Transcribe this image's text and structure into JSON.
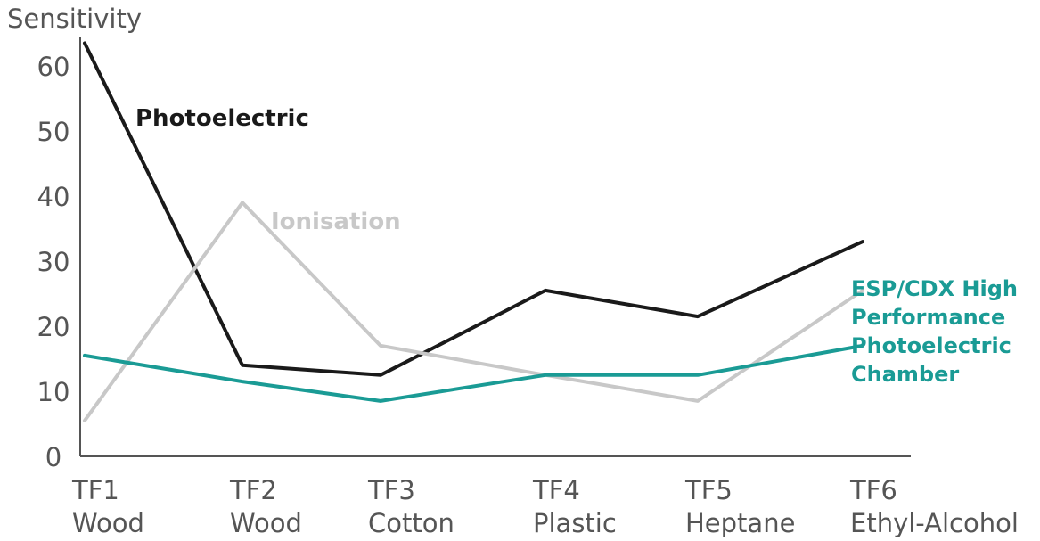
{
  "chart_data": {
    "type": "line",
    "title": "",
    "xlabel": "",
    "ylabel": "Sensitivity",
    "ylim": [
      0,
      63
    ],
    "yticks": [
      "0",
      "10",
      "20",
      "30",
      "40",
      "50",
      "60"
    ],
    "categories": [
      {
        "line1": "TF1",
        "line2": "Wood"
      },
      {
        "line1": "TF2",
        "line2": "Wood"
      },
      {
        "line1": "TF3",
        "line2": "Cotton"
      },
      {
        "line1": "TF4",
        "line2": "Plastic"
      },
      {
        "line1": "TF5",
        "line2": "Heptane"
      },
      {
        "line1": "TF6",
        "line2": "Ethyl-Alcohol"
      }
    ],
    "series": [
      {
        "name": "Photoelectric",
        "values": [
          63.5,
          14,
          12.5,
          25.5,
          21.5,
          33
        ],
        "color": "#1a1a1a"
      },
      {
        "name": "Ionisation",
        "values": [
          5.5,
          39,
          17,
          12.5,
          8.5,
          25.5
        ],
        "color": "#c8c8c8"
      },
      {
        "name": "ESP/CDX High Performance Photoelectric Chamber",
        "values": [
          15.5,
          11.5,
          8.5,
          12.5,
          12.5,
          17
        ],
        "color": "#1a9b95"
      }
    ],
    "grid": false
  }
}
